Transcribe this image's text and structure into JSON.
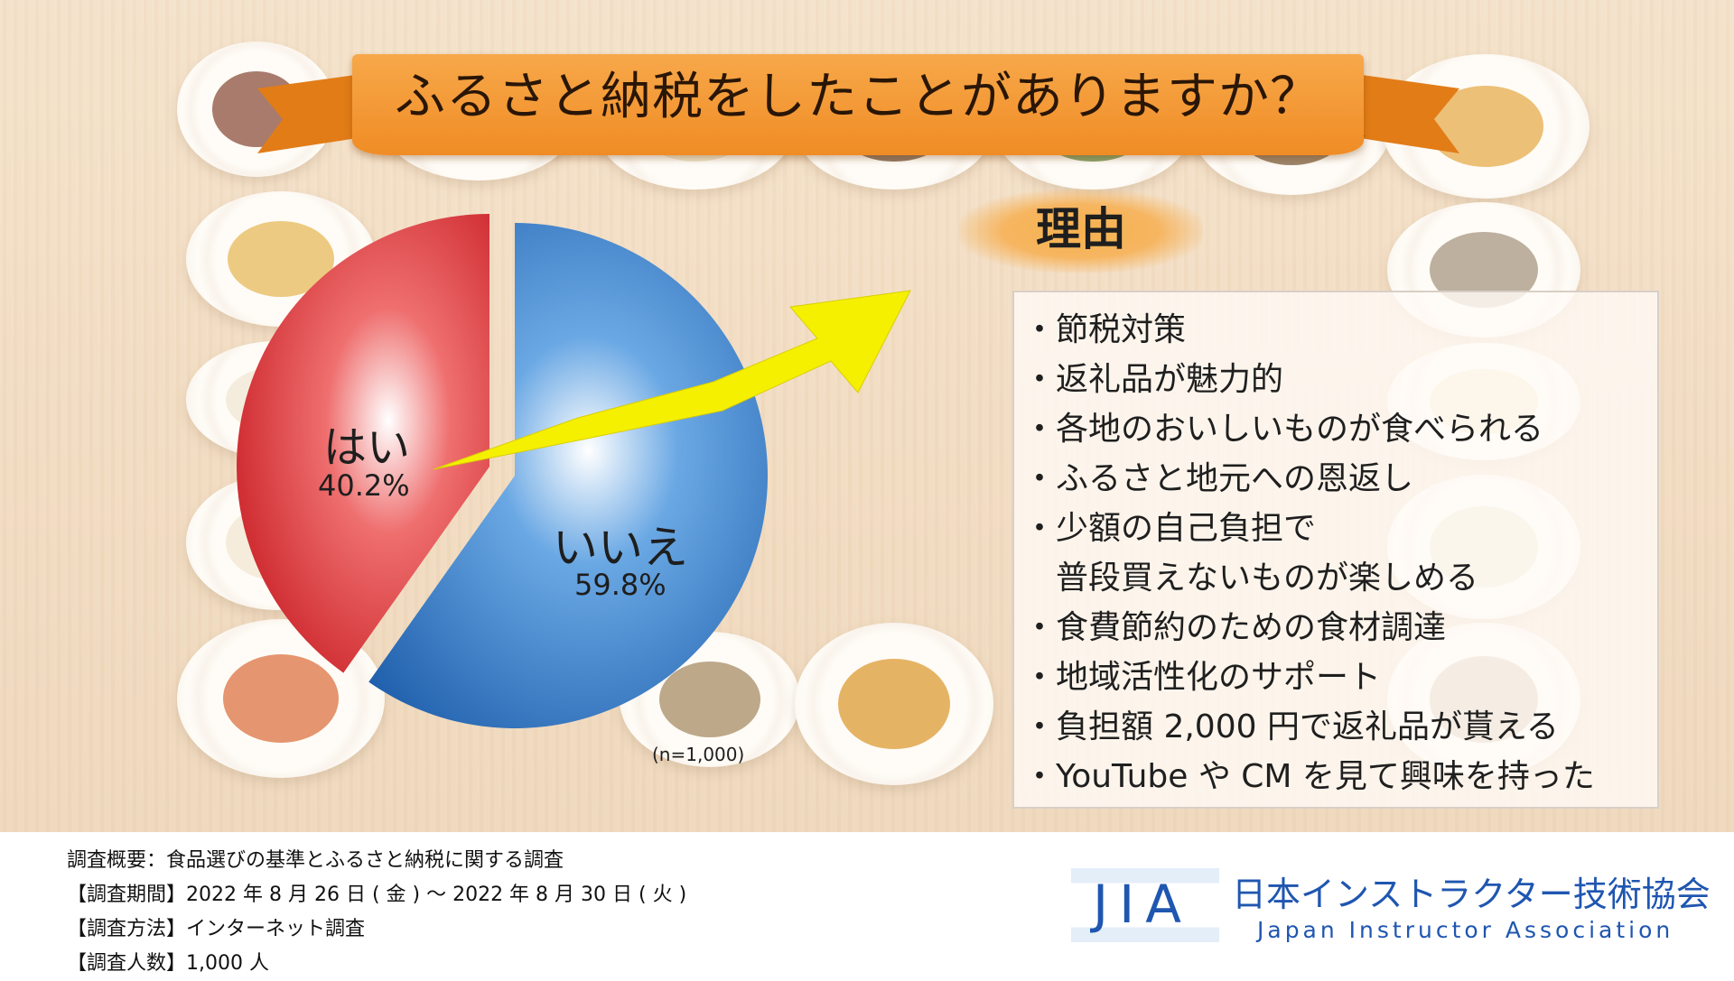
{
  "title": "ふるさと納税をしたことがありますか？",
  "reasons_heading": "理由",
  "reasons": [
    "・節税対策",
    "・返礼品が魅力的",
    "・各地のおいしいものが食べられる",
    "・ふるさと地元への恩返し",
    "・少額の自己負担で",
    "　普段買えないものが楽しめる",
    "・食費節約のための食材調達",
    "・地域活性化のサポート",
    "・負担額 2,000 円で返礼品が貰える",
    "・YouTube や CM を見て興味を持った"
  ],
  "chart_data": {
    "type": "pie",
    "slices": [
      {
        "label": "はい",
        "value": 40.2,
        "value_label": "40.2%",
        "color": "#d4262b"
      },
      {
        "label": "いいえ",
        "value": 59.8,
        "value_label": "59.8%",
        "color": "#1f6ec2"
      }
    ],
    "sample_note": "(n=1,000)"
  },
  "survey": {
    "overview": "調査概要：食品選びの基準とふるさと納税に関する調査",
    "period": "【調査期間】2022 年 8 月 26 日 ( 金 ) ～ 2022 年 8 月 30 日 ( 火 )",
    "method": "【調査方法】インターネット調査",
    "respondents": "【調査人数】1,000 人"
  },
  "organization": {
    "logo_text": "JIA",
    "name_ja": "日本インストラクター技術協会",
    "name_en": "Japan Instructor Association"
  },
  "colors": {
    "banner": "#f08c25",
    "yes": "#d4262b",
    "no": "#1f6ec2",
    "arrow": "#f5f000",
    "brand": "#1f56b0"
  }
}
